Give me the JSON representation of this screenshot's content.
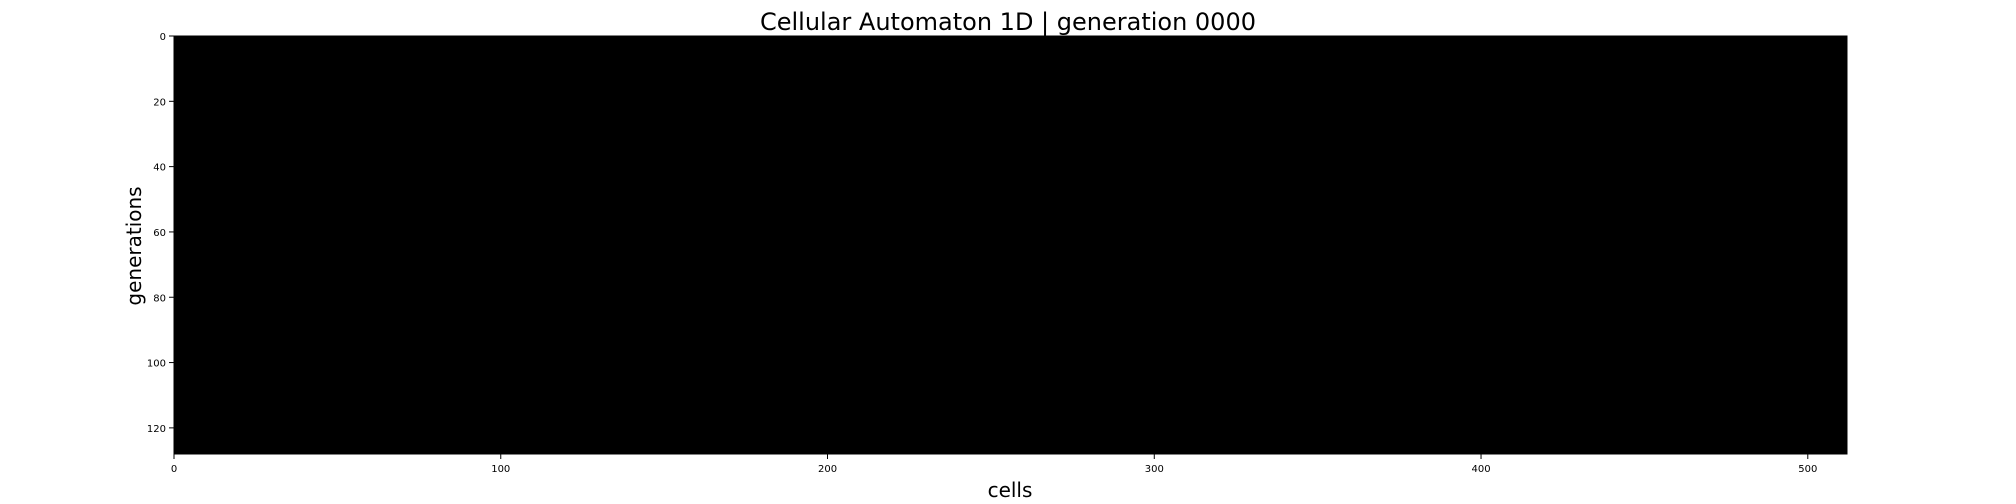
{
  "chart_data": {
    "type": "heatmap",
    "title": "Cellular Automaton 1D | generation 0000",
    "xlabel": "cells",
    "ylabel": "generations",
    "xlim": [
      0,
      512
    ],
    "ylim": [
      0,
      128
    ],
    "y_inverted": true,
    "x_ticks": [
      "0",
      "100",
      "200",
      "300",
      "400",
      "500"
    ],
    "y_ticks": [
      "0",
      "20",
      "40",
      "60",
      "80",
      "100",
      "120"
    ],
    "cells": 512,
    "generations": 128,
    "fill_value": 0,
    "grid": false,
    "legend": "none",
    "colors": {
      "dead_cell": "#000000",
      "alive_cell": "#ffffff",
      "axis": "#000000",
      "background": "#ffffff"
    }
  }
}
